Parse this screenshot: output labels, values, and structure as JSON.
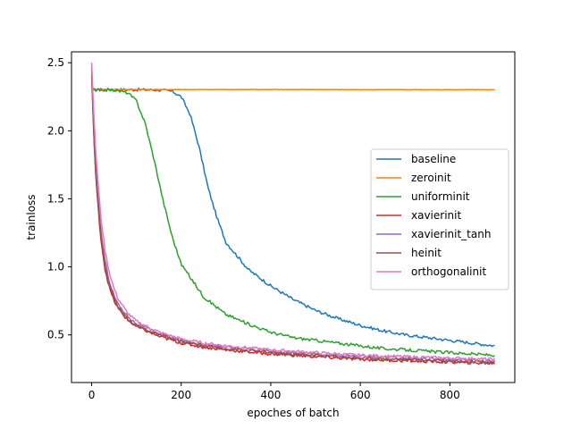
{
  "chart_data": {
    "type": "line",
    "title": "",
    "xlabel": "epoches of batch",
    "ylabel": "trainloss",
    "xlim": [
      -45,
      945
    ],
    "ylim": [
      0.15,
      2.58
    ],
    "xticks": [
      0,
      200,
      400,
      600,
      800
    ],
    "yticks": [
      0.5,
      1.0,
      1.5,
      2.0,
      2.5
    ],
    "xtick_labels": [
      "0",
      "200",
      "400",
      "600",
      "800"
    ],
    "ytick_labels": [
      "0.5",
      "1.0",
      "1.5",
      "2.0",
      "2.5"
    ],
    "grid": false,
    "legend_position": "center-right",
    "series": [
      {
        "name": "baseline",
        "color": "#1f77b4",
        "x": [
          0,
          50,
          100,
          150,
          180,
          200,
          220,
          240,
          260,
          280,
          300,
          350,
          400,
          450,
          500,
          550,
          600,
          650,
          700,
          750,
          800,
          850,
          900
        ],
        "y": [
          2.3,
          2.302,
          2.302,
          2.3,
          2.29,
          2.25,
          2.12,
          1.88,
          1.58,
          1.36,
          1.18,
          0.98,
          0.86,
          0.76,
          0.68,
          0.62,
          0.57,
          0.53,
          0.5,
          0.48,
          0.46,
          0.44,
          0.42
        ]
      },
      {
        "name": "zeroinit",
        "color": "#ff7f0e",
        "x": [
          0,
          100,
          200,
          300,
          400,
          500,
          600,
          700,
          800,
          900
        ],
        "y": [
          2.303,
          2.303,
          2.303,
          2.303,
          2.303,
          2.303,
          2.302,
          2.302,
          2.302,
          2.302
        ]
      },
      {
        "name": "uniforminit",
        "color": "#2ca02c",
        "x": [
          0,
          50,
          80,
          100,
          120,
          140,
          160,
          180,
          200,
          250,
          300,
          350,
          400,
          450,
          500,
          550,
          600,
          650,
          700,
          750,
          800,
          850,
          900
        ],
        "y": [
          2.3,
          2.3,
          2.28,
          2.22,
          2.05,
          1.78,
          1.48,
          1.22,
          1.02,
          0.78,
          0.65,
          0.58,
          0.52,
          0.48,
          0.46,
          0.44,
          0.42,
          0.4,
          0.39,
          0.38,
          0.37,
          0.36,
          0.35
        ]
      },
      {
        "name": "xavierinit",
        "color": "#d62728",
        "x": [
          0,
          5,
          10,
          20,
          30,
          40,
          50,
          60,
          80,
          100,
          150,
          200,
          250,
          300,
          400,
          500,
          600,
          700,
          800,
          900
        ],
        "y": [
          2.4,
          1.95,
          1.62,
          1.22,
          0.98,
          0.84,
          0.75,
          0.69,
          0.61,
          0.56,
          0.49,
          0.44,
          0.41,
          0.39,
          0.36,
          0.34,
          0.32,
          0.31,
          0.3,
          0.29
        ]
      },
      {
        "name": "xavierinit_tanh",
        "color": "#9467bd",
        "x": [
          0,
          5,
          10,
          20,
          30,
          40,
          50,
          60,
          80,
          100,
          150,
          200,
          250,
          300,
          400,
          500,
          600,
          700,
          800,
          900
        ],
        "y": [
          2.48,
          2.0,
          1.68,
          1.28,
          1.04,
          0.89,
          0.79,
          0.72,
          0.64,
          0.58,
          0.51,
          0.46,
          0.43,
          0.41,
          0.38,
          0.36,
          0.34,
          0.33,
          0.32,
          0.31
        ]
      },
      {
        "name": "heinit",
        "color": "#8c564b",
        "x": [
          0,
          5,
          10,
          20,
          30,
          40,
          50,
          60,
          80,
          100,
          150,
          200,
          250,
          300,
          400,
          500,
          600,
          700,
          800,
          900
        ],
        "y": [
          2.45,
          1.97,
          1.64,
          1.24,
          1.0,
          0.86,
          0.77,
          0.7,
          0.62,
          0.57,
          0.5,
          0.45,
          0.42,
          0.4,
          0.37,
          0.35,
          0.33,
          0.32,
          0.31,
          0.3
        ]
      },
      {
        "name": "orthogonalinit",
        "color": "#e377c2",
        "x": [
          0,
          5,
          10,
          20,
          30,
          40,
          50,
          60,
          80,
          100,
          150,
          200,
          250,
          300,
          400,
          500,
          600,
          700,
          800,
          900
        ],
        "y": [
          2.5,
          2.1,
          1.8,
          1.38,
          1.12,
          0.95,
          0.84,
          0.76,
          0.66,
          0.6,
          0.52,
          0.47,
          0.44,
          0.42,
          0.39,
          0.37,
          0.35,
          0.34,
          0.33,
          0.32
        ]
      }
    ]
  }
}
